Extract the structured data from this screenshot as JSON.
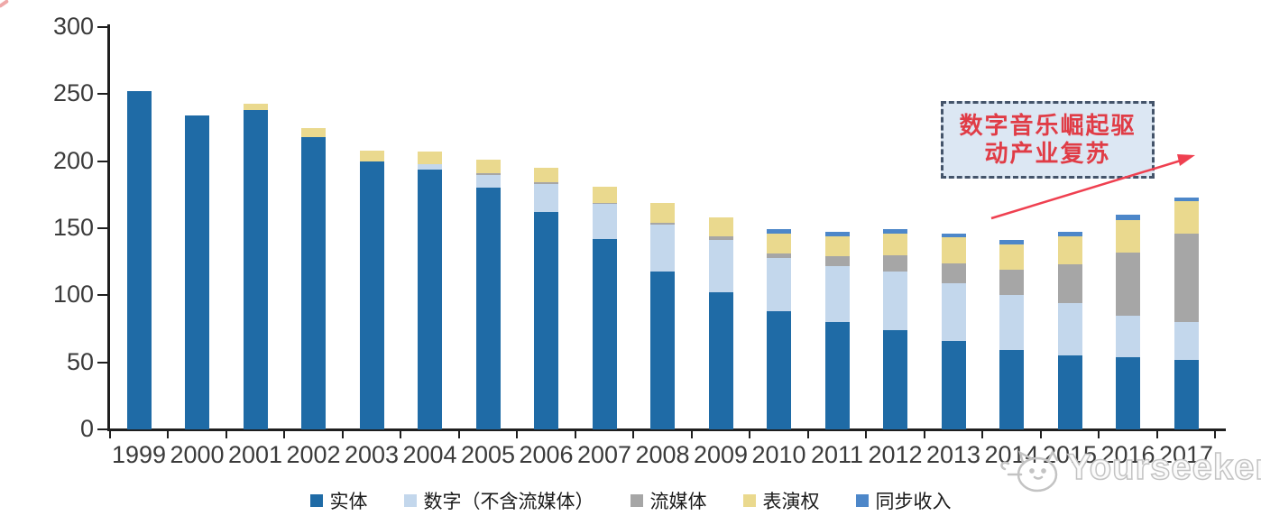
{
  "chart_data": {
    "type": "bar",
    "stacked": true,
    "title": "",
    "xlabel": "",
    "ylabel": "",
    "categories": [
      "1999",
      "2000",
      "2001",
      "2002",
      "2003",
      "2004",
      "2005",
      "2006",
      "2007",
      "2008",
      "2009",
      "2010",
      "2011",
      "2012",
      "2013",
      "2014",
      "2015",
      "2016",
      "2017"
    ],
    "series": [
      {
        "name": "实体",
        "color": "#1f6ba6",
        "values": [
          252,
          234,
          238,
          218,
          200,
          194,
          180,
          162,
          142,
          118,
          102,
          88,
          80,
          74,
          66,
          59,
          55,
          54,
          52
        ]
      },
      {
        "name": "数字（不含流媒体）",
        "color": "#c3d7ec",
        "values": [
          0,
          0,
          0,
          0,
          0,
          4,
          10,
          21,
          26,
          35,
          39,
          40,
          42,
          44,
          43,
          41,
          39,
          31,
          28
        ]
      },
      {
        "name": "流媒体",
        "color": "#a6a6a6",
        "values": [
          0,
          0,
          0,
          0,
          0,
          0,
          1,
          1,
          1,
          1,
          3,
          3,
          7,
          12,
          15,
          19,
          29,
          47,
          66
        ]
      },
      {
        "name": "表演权",
        "color": "#ead98e",
        "values": [
          0,
          0,
          5,
          7,
          8,
          9,
          10,
          11,
          12,
          15,
          14,
          15,
          15,
          16,
          19,
          19,
          21,
          24,
          24
        ]
      },
      {
        "name": "同步收入",
        "color": "#4d87c9",
        "values": [
          0,
          0,
          0,
          0,
          0,
          0,
          0,
          0,
          0,
          0,
          0,
          3,
          3,
          3,
          3,
          3,
          3,
          4,
          3
        ]
      }
    ],
    "ylim": [
      0,
      300
    ],
    "y_ticks": [
      0,
      50,
      100,
      150,
      200,
      250,
      300
    ],
    "grid": false,
    "legend_position": "bottom"
  },
  "axis": {
    "line_color": "#1f1f1f",
    "label_color": "#3b3b3b"
  },
  "annotation": {
    "line1": "数字音乐崛起驱",
    "line2": "动产业复苏",
    "box_fill_color": "#dce7f3",
    "box_border_color": "#44546a",
    "text_color": "#e03c46",
    "arrow_color": "#ef4050"
  },
  "watermark": {
    "text": "Yourseeker",
    "logo": "cat-face-logo",
    "color": "#c3c3c3"
  }
}
